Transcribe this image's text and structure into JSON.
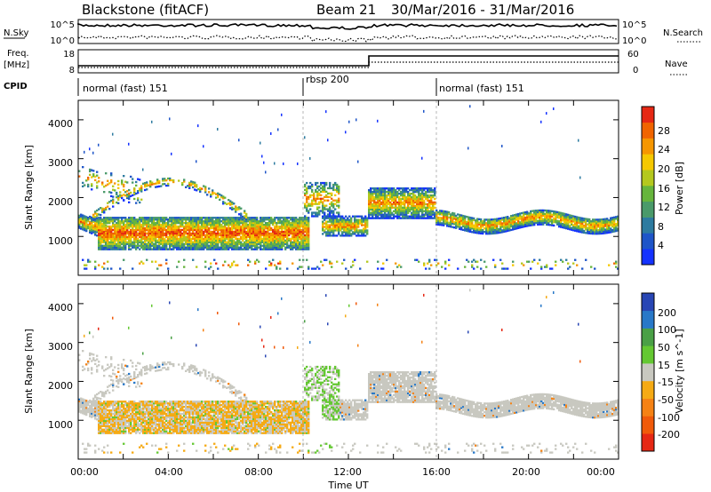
{
  "header": {
    "title": "Blackstone (fitACF)",
    "beam": "Beam 21",
    "date_range": "30/Mar/2016 - 31/Mar/2016"
  },
  "sky_panel": {
    "label": "N.Sky",
    "tick_top": "10^5",
    "tick_bottom": "10^0",
    "right_label": "N.Search",
    "right_tick_top": "10^5",
    "right_tick_bottom": "10^0"
  },
  "freq_panel": {
    "label_line1": "Freq.",
    "label_line2": "[MHz]",
    "tick_top": "18",
    "tick_bottom": "8",
    "right_label": "Nave",
    "right_tick_top": "60",
    "right_tick_bottom": "0"
  },
  "cpid": {
    "label": "CPID",
    "segments": [
      {
        "start_hour": 0,
        "text": "normal (fast) 151"
      },
      {
        "start_hour": 10,
        "text": "rbsp 200"
      },
      {
        "start_hour": 16,
        "text": "normal (fast) 151"
      }
    ]
  },
  "chart_data": [
    {
      "type": "heatmap",
      "name": "power",
      "ylabel": "Slant Range [km]",
      "x_range_hours": [
        0,
        24
      ],
      "ylim": [
        0,
        4500
      ],
      "yticks": [
        1000,
        2000,
        3000,
        4000
      ],
      "colorbar": {
        "label": "Power [dB]",
        "ticks": [
          "4",
          "8",
          "12",
          "16",
          "20",
          "24",
          "28"
        ],
        "colors": [
          "#1432ff",
          "#1e55c8",
          "#2d7ba0",
          "#4a9a6a",
          "#66b53c",
          "#b4c81e",
          "#f5c800",
          "#f59600",
          "#f06400",
          "#e62814"
        ]
      }
    },
    {
      "type": "heatmap",
      "name": "velocity",
      "ylabel": "Slant Range [km]",
      "xlabel": "Time UT",
      "x_range_hours": [
        0,
        24
      ],
      "ylim": [
        0,
        4500
      ],
      "yticks": [
        1000,
        2000,
        3000,
        4000
      ],
      "xtick_labels": [
        "00:00",
        "04:00",
        "08:00",
        "12:00",
        "16:00",
        "20:00",
        "00:00"
      ],
      "colorbar": {
        "label": "Velocity [m s^-1]",
        "ticks": [
          "200",
          "100",
          "50",
          "15",
          "-15",
          "-50",
          "-100",
          "-200"
        ],
        "colors": [
          "#2846b4",
          "#2878c8",
          "#4aa046",
          "#64c832",
          "#c8c8c0",
          "#f5aa14",
          "#f58214",
          "#f05a0a",
          "#e62814"
        ]
      }
    }
  ]
}
